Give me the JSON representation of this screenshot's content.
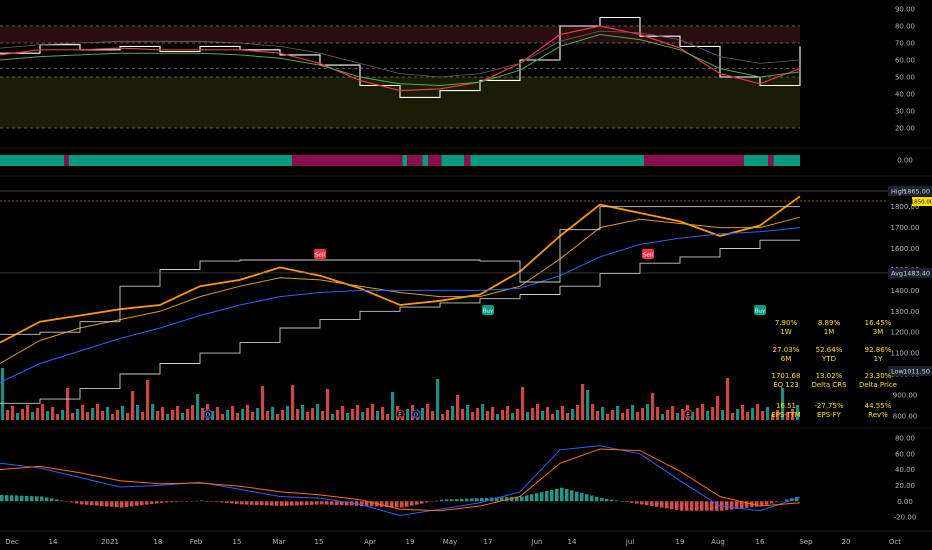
{
  "colors": {
    "bg": "#000000",
    "grid": "#262626",
    "text": "#b2b5be",
    "white": "#ffffff",
    "red": "#f23645",
    "orange": "#ff9800",
    "blue": "#2962ff",
    "green": "#4caf50",
    "teal": "#089981",
    "maroon": "#880e4f",
    "overbought_band": "#2a0d10",
    "oversold_band": "#1a1c06",
    "vol_up": "#26a69a",
    "vol_down": "#ef5350",
    "label_yellow": "#ffe000"
  },
  "time_axis": [
    "Dec",
    "14",
    "2021",
    "18",
    "Feb",
    "15",
    "Mar",
    "15",
    "Apr",
    "19",
    "May",
    "17",
    "Jun",
    "14",
    "Jul",
    "19",
    "Aug",
    "16",
    "Sep",
    "20",
    "Oct"
  ],
  "chart_data": [
    {
      "id": "oscillator",
      "type": "line",
      "y_ticks": [
        "90.00",
        "80.00",
        "70.00",
        "60.00",
        "50.00",
        "40.00",
        "30.00",
        "20.00"
      ],
      "ylim": [
        20,
        90
      ],
      "levels": [
        80,
        70,
        55,
        50,
        20
      ],
      "x": [
        0,
        5,
        10,
        15,
        20,
        25,
        30,
        35,
        40,
        45,
        50,
        55,
        60,
        65,
        70,
        75,
        80,
        85,
        90,
        95,
        100
      ],
      "series": [
        {
          "values": [
            64,
            69,
            66,
            68,
            65,
            68,
            66,
            63,
            57,
            45,
            38,
            42,
            48,
            60,
            80,
            85,
            74,
            68,
            50,
            45,
            68
          ]
        },
        {
          "values": [
            63,
            66,
            66,
            67,
            66,
            66,
            66,
            64,
            58,
            48,
            42,
            43,
            47,
            58,
            75,
            80,
            75,
            67,
            52,
            46,
            55
          ]
        },
        {
          "values": [
            60,
            62,
            63,
            64,
            64,
            64,
            63,
            61,
            57,
            50,
            46,
            45,
            47,
            54,
            68,
            75,
            72,
            66,
            55,
            50,
            53
          ]
        },
        {
          "values": [
            67,
            69,
            70,
            71,
            71,
            71,
            70,
            68,
            64,
            58,
            52,
            50,
            52,
            58,
            71,
            77,
            76,
            72,
            62,
            58,
            60
          ]
        }
      ]
    },
    {
      "id": "trend_bar",
      "type": "bar",
      "y_ticks": [
        "0.00"
      ],
      "segments": [
        {
          "start": 0,
          "end": 8,
          "state": "bull"
        },
        {
          "start": 8,
          "end": 8.6,
          "state": "bear"
        },
        {
          "start": 8.6,
          "end": 36.5,
          "state": "bull"
        },
        {
          "start": 36.5,
          "end": 50.3,
          "state": "bear"
        },
        {
          "start": 50.3,
          "end": 50.9,
          "state": "bull"
        },
        {
          "start": 50.9,
          "end": 52.8,
          "state": "bear"
        },
        {
          "start": 52.8,
          "end": 53.5,
          "state": "bull"
        },
        {
          "start": 53.5,
          "end": 55.2,
          "state": "bear"
        },
        {
          "start": 55.2,
          "end": 58.0,
          "state": "bull"
        },
        {
          "start": 58.0,
          "end": 58.8,
          "state": "bear"
        },
        {
          "start": 58.8,
          "end": 80.5,
          "state": "bull"
        },
        {
          "start": 80.5,
          "end": 93.0,
          "state": "bear"
        },
        {
          "start": 93.0,
          "end": 96.0,
          "state": "bull"
        },
        {
          "start": 96.0,
          "end": 96.7,
          "state": "bear"
        },
        {
          "start": 96.7,
          "end": 100,
          "state": "bull"
        }
      ]
    },
    {
      "id": "price",
      "type": "line",
      "ylim": [
        780,
        1880
      ],
      "y_ticks": [
        "1800.00",
        "1700.00",
        "1600.00",
        "1500.00",
        "1400.00",
        "1300.00",
        "1200.00",
        "1100.00",
        "1000.00",
        "900.00",
        "800.00"
      ],
      "x": [
        0,
        5,
        10,
        15,
        20,
        25,
        30,
        35,
        40,
        45,
        50,
        55,
        60,
        65,
        70,
        75,
        80,
        85,
        90,
        95,
        100
      ],
      "series": [
        {
          "values": [
            1150,
            1250,
            1280,
            1310,
            1330,
            1420,
            1450,
            1510,
            1470,
            1410,
            1330,
            1350,
            1380,
            1490,
            1660,
            1810,
            1770,
            1730,
            1660,
            1710,
            1850
          ]
        },
        {
          "values": [
            1050,
            1160,
            1220,
            1260,
            1300,
            1370,
            1420,
            1460,
            1450,
            1420,
            1390,
            1370,
            1370,
            1420,
            1550,
            1700,
            1740,
            1720,
            1700,
            1700,
            1750
          ]
        },
        {
          "values": [
            960,
            1050,
            1110,
            1170,
            1220,
            1280,
            1330,
            1370,
            1390,
            1400,
            1400,
            1400,
            1400,
            1410,
            1470,
            1560,
            1620,
            1650,
            1670,
            1680,
            1700
          ]
        },
        {
          "values": [
            1190,
            1200,
            1250,
            1420,
            1500,
            1540,
            1545,
            1545,
            1545,
            1545,
            1545,
            1545,
            1540,
            1440,
            1690,
            1800,
            1800,
            1800,
            1800,
            1800,
            1800
          ]
        },
        {
          "values": [
            860,
            880,
            930,
            1000,
            1050,
            1100,
            1150,
            1220,
            1260,
            1300,
            1320,
            1340,
            1360,
            1380,
            1420,
            1480,
            1530,
            1560,
            1600,
            1640,
            1640
          ]
        }
      ],
      "high_label": "High",
      "high_value": "1865.00",
      "last_value": "1850.00",
      "avg_label": "Avg",
      "avg_value": "1483.40",
      "low_label": "Low",
      "low_value": "1011.50",
      "signals": [
        {
          "text": "Sell",
          "x": 40
        },
        {
          "text": "Buy",
          "x": 61
        },
        {
          "text": "Sell",
          "x": 81
        },
        {
          "text": "Buy",
          "x": 95
        }
      ]
    },
    {
      "id": "macd",
      "type": "line",
      "ylim": [
        -30,
        90
      ],
      "y_ticks": [
        "80.00",
        "60.00",
        "40.00",
        "20.00",
        "0.00",
        "-20.00"
      ],
      "x": [
        0,
        5,
        10,
        15,
        20,
        25,
        30,
        35,
        40,
        45,
        50,
        55,
        60,
        65,
        70,
        75,
        80,
        85,
        90,
        95,
        100
      ],
      "series": [
        {
          "values": [
            48,
            42,
            30,
            18,
            20,
            24,
            15,
            6,
            4,
            -4,
            -18,
            -10,
            -2,
            12,
            65,
            70,
            60,
            26,
            -6,
            -12,
            5
          ]
        },
        {
          "values": [
            40,
            44,
            36,
            26,
            22,
            23,
            19,
            12,
            8,
            2,
            -10,
            -12,
            -6,
            6,
            48,
            66,
            64,
            38,
            6,
            -6,
            -2
          ]
        }
      ],
      "histogram": [
        8,
        6,
        -4,
        -8,
        -2,
        1,
        -4,
        -6,
        -4,
        -6,
        -8,
        2,
        4,
        6,
        17,
        4,
        -4,
        -12,
        -12,
        -6,
        7
      ]
    }
  ],
  "stats": {
    "row1": [
      {
        "v": "7.90%",
        "l": "1W"
      },
      {
        "v": "8.89%",
        "l": "1M"
      },
      {
        "v": "16.45%",
        "l": "3M"
      }
    ],
    "row2": [
      {
        "v": "27.03%",
        "l": "6M"
      },
      {
        "v": "52.64%",
        "l": "YTD"
      },
      {
        "v": "92.86%",
        "l": "1Y"
      }
    ],
    "row3": [
      {
        "v": "1701.68",
        "l": "EQ 123"
      },
      {
        "v": "13.02%",
        "l": "Delta CRS"
      },
      {
        "v": "23.30%",
        "l": "Delta Price"
      }
    ],
    "row4": [
      {
        "v": "16.51",
        "l": "EPS-TTM"
      },
      {
        "v": "-27.75%",
        "l": "EPS-FY"
      },
      {
        "v": "44.55%",
        "l": "Rev%"
      }
    ]
  },
  "event_markers": [
    {
      "text": "D",
      "x": 26
    },
    {
      "text": "E",
      "x": 50
    },
    {
      "text": "D",
      "x": 52
    },
    {
      "text": "E",
      "x": 86
    }
  ]
}
